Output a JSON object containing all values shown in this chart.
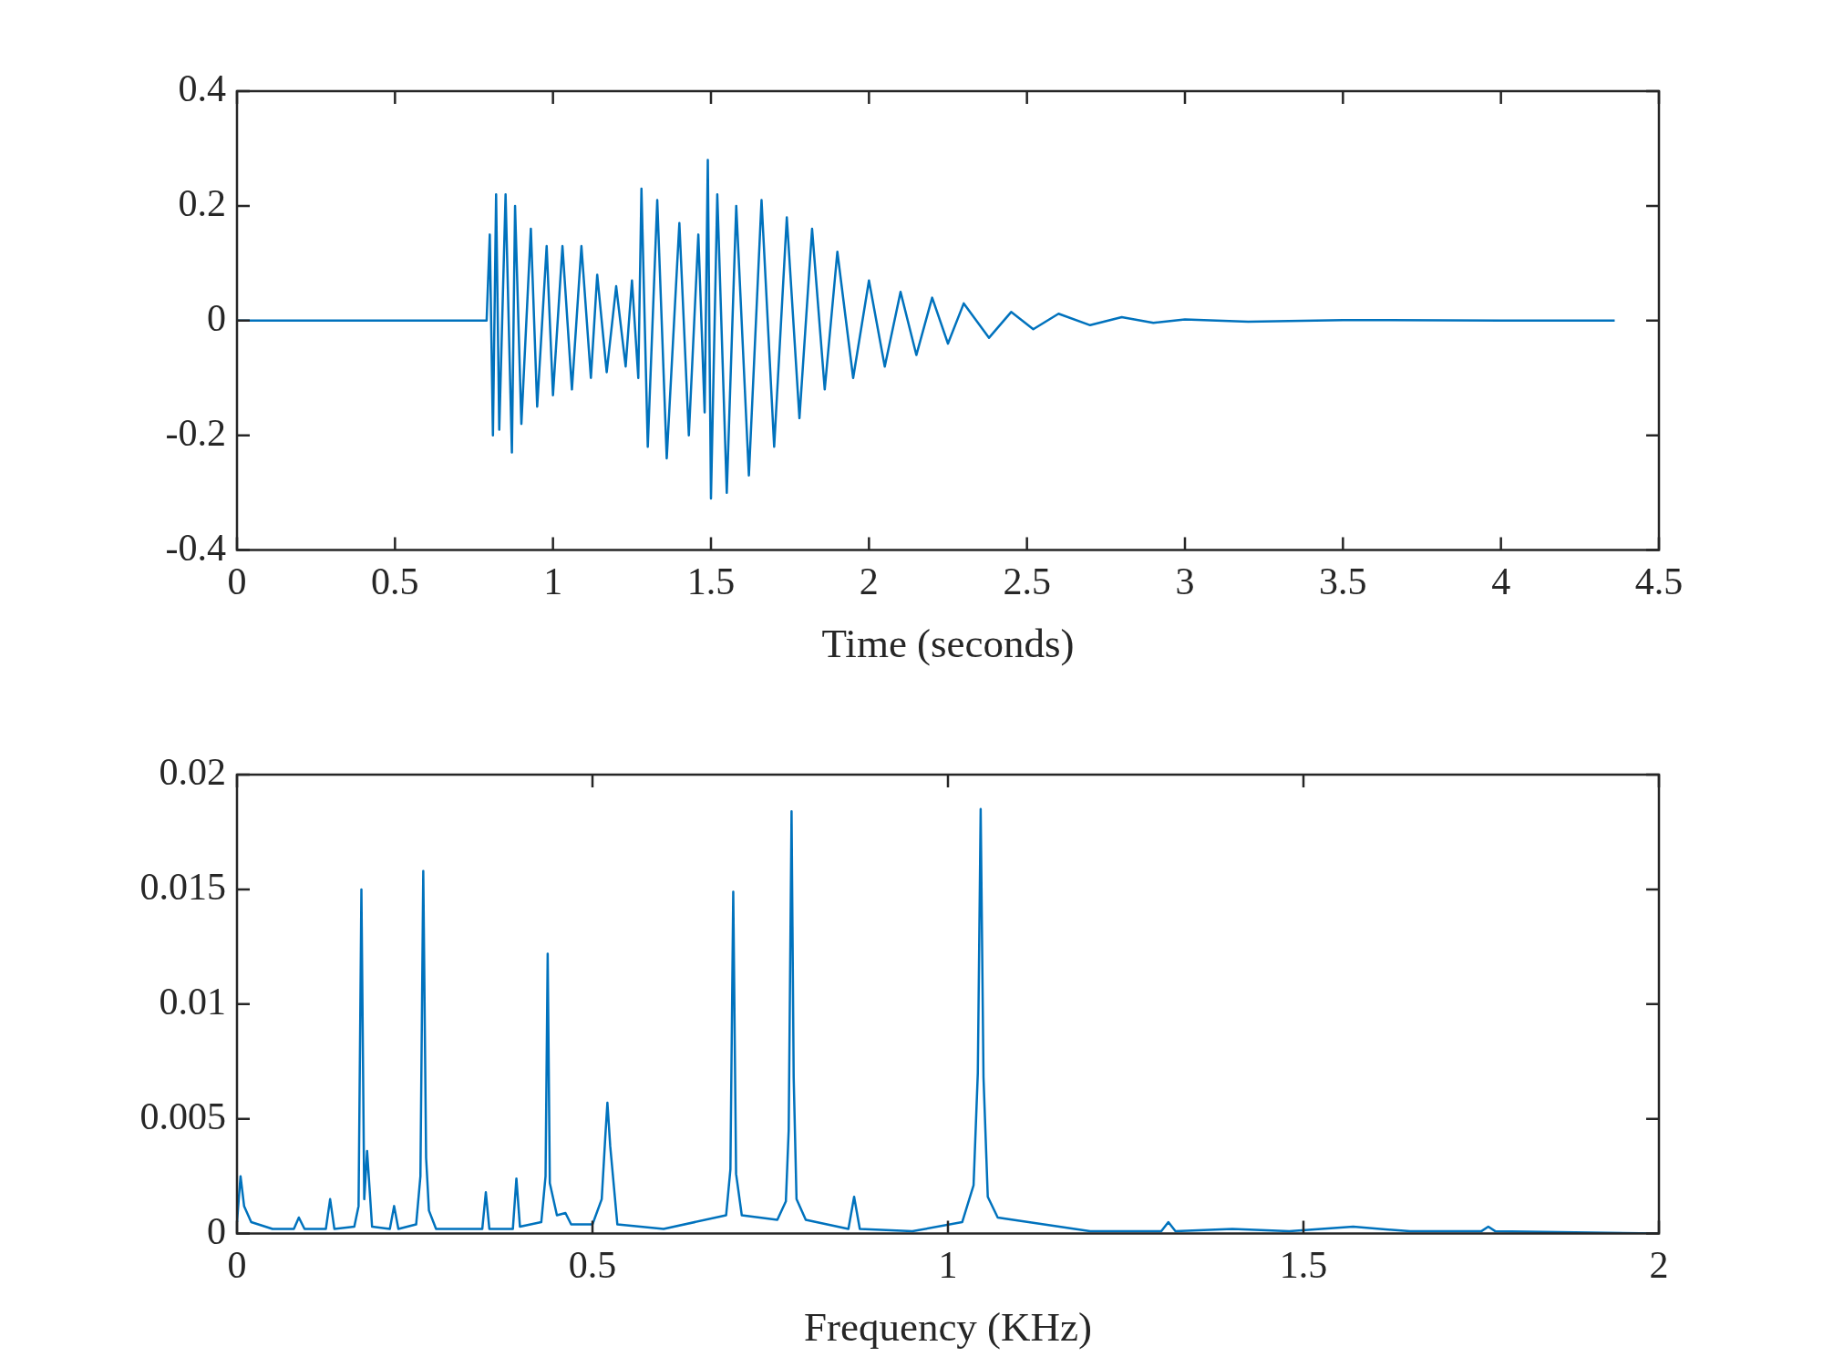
{
  "chart_data": [
    {
      "type": "line",
      "xlabel": "Time (seconds)",
      "xlim": [
        0,
        4.5
      ],
      "xticks": [
        0,
        0.5,
        1,
        1.5,
        2,
        2.5,
        3,
        3.5,
        4,
        4.5
      ],
      "ylim": [
        -0.4,
        0.4
      ],
      "yticks": [
        -0.4,
        -0.2,
        0,
        0.2,
        0.4
      ],
      "marker": "none",
      "series": [
        {
          "color": "#0072bd",
          "x": [
            0,
            0.79,
            0.8,
            0.81,
            0.82,
            0.83,
            0.85,
            0.87,
            0.88,
            0.9,
            0.93,
            0.95,
            0.98,
            1.0,
            1.03,
            1.06,
            1.09,
            1.12,
            1.14,
            1.17,
            1.2,
            1.23,
            1.25,
            1.27,
            1.28,
            1.3,
            1.33,
            1.36,
            1.4,
            1.43,
            1.46,
            1.48,
            1.49,
            1.5,
            1.52,
            1.55,
            1.58,
            1.62,
            1.66,
            1.7,
            1.74,
            1.78,
            1.82,
            1.86,
            1.9,
            1.95,
            2.0,
            2.05,
            2.1,
            2.15,
            2.2,
            2.25,
            2.3,
            2.38,
            2.45,
            2.52,
            2.6,
            2.7,
            2.8,
            2.9,
            3.0,
            3.2,
            3.5,
            4.0,
            4.36
          ],
          "values": [
            0,
            0,
            0.15,
            -0.2,
            0.22,
            -0.19,
            0.22,
            -0.23,
            0.2,
            -0.18,
            0.16,
            -0.15,
            0.13,
            -0.13,
            0.13,
            -0.12,
            0.13,
            -0.1,
            0.08,
            -0.09,
            0.06,
            -0.08,
            0.07,
            -0.1,
            0.23,
            -0.22,
            0.21,
            -0.24,
            0.17,
            -0.2,
            0.15,
            -0.16,
            0.28,
            -0.31,
            0.22,
            -0.3,
            0.2,
            -0.27,
            0.21,
            -0.22,
            0.18,
            -0.17,
            0.16,
            -0.12,
            0.12,
            -0.1,
            0.07,
            -0.08,
            0.05,
            -0.06,
            0.04,
            -0.04,
            0.03,
            -0.03,
            0.015,
            -0.015,
            0.012,
            -0.008,
            0.006,
            -0.004,
            0.002,
            -0.002,
            0.001,
            0,
            0
          ]
        }
      ]
    },
    {
      "type": "line",
      "xlabel": "Frequency (KHz)",
      "xlim": [
        0,
        2
      ],
      "xticks": [
        0,
        0.5,
        1,
        1.5,
        2
      ],
      "ylim": [
        0,
        0.02
      ],
      "yticks": [
        0,
        0.005,
        0.01,
        0.015,
        0.02
      ],
      "marker": "none",
      "series": [
        {
          "color": "#0072bd",
          "x": [
            0,
            0.005,
            0.01,
            0.02,
            0.05,
            0.08,
            0.087,
            0.095,
            0.125,
            0.131,
            0.137,
            0.165,
            0.171,
            0.175,
            0.179,
            0.183,
            0.19,
            0.215,
            0.221,
            0.227,
            0.252,
            0.258,
            0.262,
            0.266,
            0.27,
            0.28,
            0.345,
            0.35,
            0.355,
            0.388,
            0.393,
            0.398,
            0.428,
            0.434,
            0.437,
            0.44,
            0.45,
            0.462,
            0.47,
            0.5,
            0.513,
            0.518,
            0.521,
            0.525,
            0.535,
            0.6,
            0.688,
            0.694,
            0.698,
            0.702,
            0.71,
            0.76,
            0.772,
            0.776,
            0.78,
            0.783,
            0.787,
            0.8,
            0.86,
            0.868,
            0.876,
            0.95,
            1.02,
            1.036,
            1.042,
            1.046,
            1.05,
            1.056,
            1.07,
            1.2,
            1.3,
            1.31,
            1.32,
            1.4,
            1.48,
            1.57,
            1.65,
            1.75,
            1.76,
            1.77,
            2.0
          ],
          "values": [
            0.0005,
            0.0025,
            0.0012,
            0.0005,
            0.0002,
            0.0002,
            0.0007,
            0.0002,
            0.0002,
            0.0015,
            0.0002,
            0.0003,
            0.0012,
            0.015,
            0.0015,
            0.0036,
            0.0003,
            0.0002,
            0.0012,
            0.0002,
            0.0004,
            0.0025,
            0.0158,
            0.0033,
            0.001,
            0.0002,
            0.0002,
            0.0018,
            0.0002,
            0.0002,
            0.0024,
            0.0003,
            0.0005,
            0.0025,
            0.0122,
            0.0022,
            0.0008,
            0.0009,
            0.0004,
            0.0004,
            0.0015,
            0.0042,
            0.0057,
            0.0038,
            0.0004,
            0.0002,
            0.0008,
            0.0028,
            0.0149,
            0.0026,
            0.0008,
            0.0006,
            0.0014,
            0.0045,
            0.0184,
            0.0068,
            0.0015,
            0.0006,
            0.0002,
            0.0016,
            0.0002,
            0.0001,
            0.0005,
            0.0021,
            0.007,
            0.0185,
            0.0068,
            0.0016,
            0.0007,
            0.0001,
            0.0001,
            0.0005,
            0.0001,
            0.0002,
            0.0001,
            0.0003,
            0.0001,
            0.0001,
            0.0003,
            0.0001,
            0
          ]
        }
      ]
    }
  ]
}
